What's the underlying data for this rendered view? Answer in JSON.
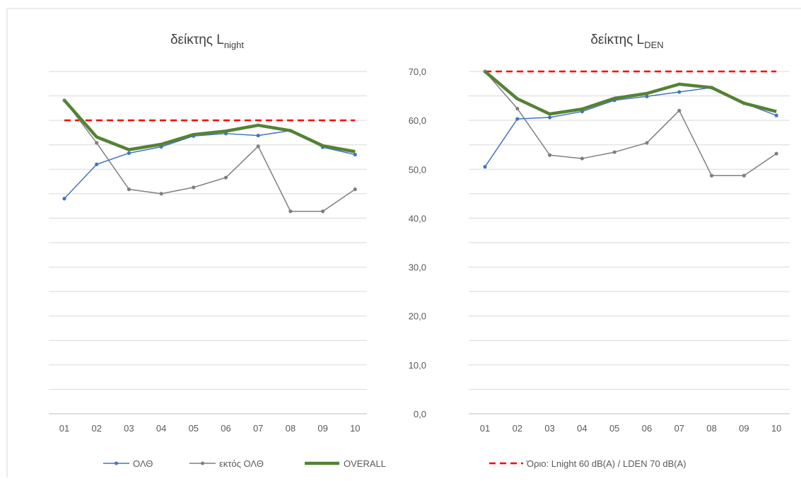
{
  "chart_data": [
    {
      "type": "line",
      "title": "δείκτης L",
      "title_subscript": "night",
      "categories": [
        "01",
        "02",
        "03",
        "04",
        "05",
        "06",
        "07",
        "08",
        "09",
        "10"
      ],
      "ylim": [
        0,
        70
      ],
      "yticks": [
        "0,0",
        "10,0",
        "20,0",
        "30,0",
        "40,0",
        "50,0",
        "60,0",
        "70,0"
      ],
      "y_axis_labels_shown": false,
      "grid": true,
      "series": [
        {
          "name": "ΟΛΘ",
          "values": [
            44.0,
            51.0,
            53.3,
            54.6,
            56.8,
            57.3,
            56.9,
            57.9,
            54.5,
            53.0
          ]
        },
        {
          "name": "εκτός ΟΛΘ",
          "values": [
            64.1,
            55.4,
            45.9,
            45.0,
            46.3,
            48.3,
            54.7,
            41.4,
            41.4,
            45.9
          ]
        },
        {
          "name": "OVERALL",
          "values": [
            64.1,
            56.6,
            54.0,
            55.1,
            57.1,
            57.8,
            59.0,
            57.9,
            54.8,
            53.6
          ]
        },
        {
          "name": "Όριο:  Lnight 60 dB(A) / LDEN 70 dB(A)",
          "values": [
            60,
            60,
            60,
            60,
            60,
            60,
            60,
            60,
            60,
            60
          ]
        }
      ]
    },
    {
      "type": "line",
      "title": "δείκτης L",
      "title_subscript": "DEN",
      "categories": [
        "01",
        "02",
        "03",
        "04",
        "05",
        "06",
        "07",
        "08",
        "09",
        "10"
      ],
      "ylim": [
        0,
        70
      ],
      "yticks": [
        "0,0",
        "10,0",
        "20,0",
        "30,0",
        "40,0",
        "50,0",
        "60,0",
        "70,0"
      ],
      "y_axis_labels_shown": true,
      "grid": true,
      "series": [
        {
          "name": "ΟΛΘ",
          "values": [
            50.5,
            60.3,
            60.6,
            61.8,
            64.1,
            64.9,
            65.8,
            66.7,
            63.5,
            61.0
          ]
        },
        {
          "name": "εκτός ΟΛΘ",
          "values": [
            70.0,
            62.4,
            52.9,
            52.2,
            53.5,
            55.4,
            62.0,
            48.7,
            48.7,
            53.2
          ]
        },
        {
          "name": "OVERALL",
          "values": [
            70.0,
            64.4,
            61.3,
            62.3,
            64.5,
            65.5,
            67.4,
            66.7,
            63.5,
            61.8
          ]
        },
        {
          "name": "Όριο:  Lnight 60 dB(A) / LDEN 70 dB(A)",
          "values": [
            70,
            70,
            70,
            70,
            70,
            70,
            70,
            70,
            70,
            70
          ]
        }
      ]
    }
  ],
  "legend": {
    "placement": "bottom",
    "items": [
      {
        "label": "ΟΛΘ",
        "color": "#4472C4",
        "style": "line-marker"
      },
      {
        "label": "εκτός ΟΛΘ",
        "color": "#7F7F7F",
        "style": "line-marker"
      },
      {
        "label": "OVERALL",
        "color": "#548235",
        "style": "thick-line"
      },
      {
        "label": "Όριο:  Lnight 60 dB(A) / LDEN 70 dB(A)",
        "color": "#FF0000",
        "style": "dashed"
      }
    ]
  },
  "colors": {
    "olth": "#4472C4",
    "ektos": "#7F7F7F",
    "overall": "#548235",
    "limit": "#FF0000",
    "grid": "#D9D9D9",
    "text": "#595959",
    "border": "#D9D9D9"
  }
}
